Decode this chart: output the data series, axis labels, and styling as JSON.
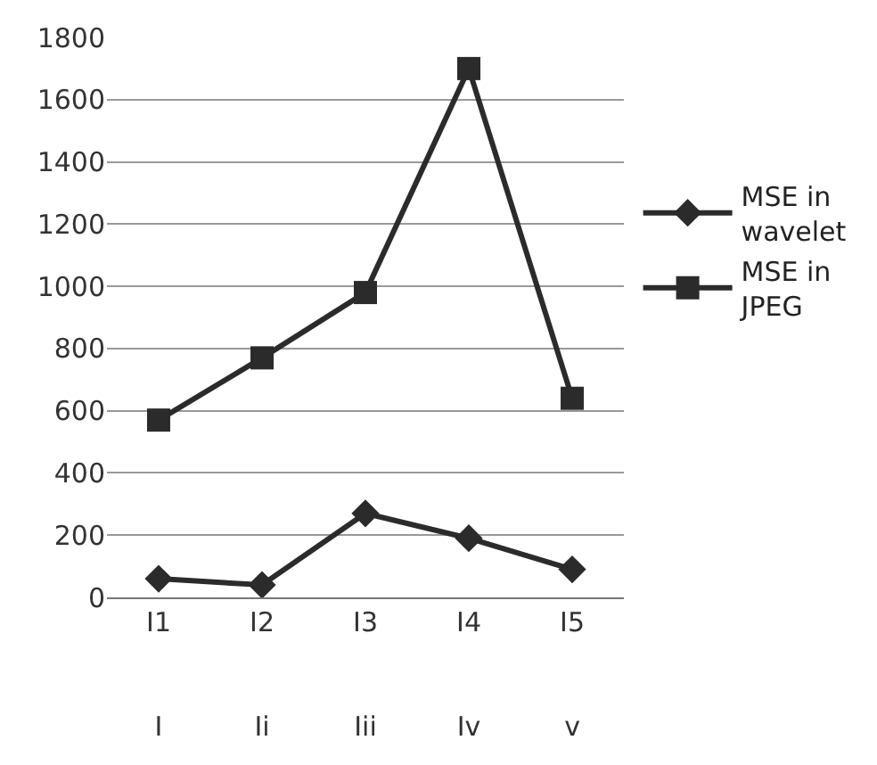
{
  "chart_data": {
    "type": "line",
    "categories": [
      "I1\nI",
      "I2\nIi",
      "I3\nIii",
      "I4\nIv",
      "I5\nv"
    ],
    "series": [
      {
        "name": "MSE in wavelet",
        "color": "#2b2b2b",
        "marker": "diamond",
        "values": [
          60,
          40,
          270,
          190,
          90
        ]
      },
      {
        "name": "MSE in JPEG",
        "color": "#2b2b2b",
        "marker": "square",
        "values": [
          570,
          770,
          980,
          1700,
          640
        ]
      }
    ],
    "ylim": [
      0,
      1800
    ],
    "yticks": [
      0,
      200,
      400,
      600,
      800,
      1000,
      1200,
      1400,
      1600,
      1800
    ],
    "grid": "y",
    "legend": "right",
    "line_style": "solid"
  }
}
